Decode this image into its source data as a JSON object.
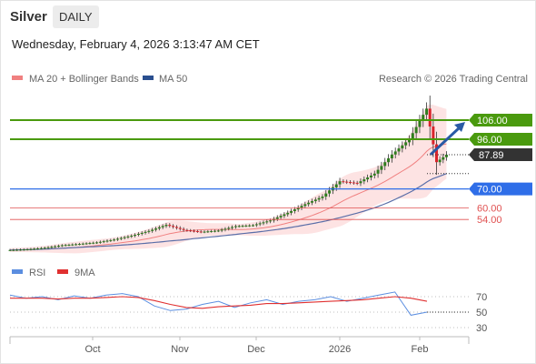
{
  "header": {
    "title": "Silver",
    "period": "DAILY",
    "timestamp": "Wednesday, February 4, 2026 3:13:47 AM CET"
  },
  "colors": {
    "bollinger_fill": "#fde3e3",
    "ma20": "#f08080",
    "ma50": "#5a6ea8",
    "level_green": "#4a9a0e",
    "level_blue": "#2f6ee8",
    "level_red": "#e05050",
    "price_tag": "#333333",
    "candle_up": "#2f7d1e",
    "candle_down": "#d9232b",
    "rsi": "#5b8ee0",
    "rsi_ma": "#e03030",
    "arrow": "#2a5aa5"
  },
  "chart_data": [
    {
      "type": "candlestick",
      "title": "Silver",
      "legend": [
        {
          "name": "MA 20 + Bollinger Bands",
          "color": "#f08080"
        },
        {
          "name": "MA 50",
          "color": "#5a6ea8"
        }
      ],
      "legend_placement": "top-left",
      "credit": "Research © 2026 Trading Central",
      "x_ticks": [
        "Oct",
        "Nov",
        "Dec",
        "2026",
        "Feb"
      ],
      "key_levels": [
        {
          "value": 106.0,
          "label": "106.00",
          "role": "resistance",
          "style": "green-tag"
        },
        {
          "value": 96.0,
          "label": "96.00",
          "role": "resistance",
          "style": "green-tag"
        },
        {
          "value": 87.89,
          "label": "87.89",
          "role": "last-price",
          "style": "dark-tag"
        },
        {
          "value": 70.0,
          "label": "70.00",
          "role": "pivot",
          "style": "blue-tag"
        },
        {
          "value": 60.0,
          "label": "60.00",
          "role": "support",
          "style": "red-text"
        },
        {
          "value": 54.0,
          "label": "54.00",
          "role": "support",
          "style": "red-text"
        }
      ],
      "projection_arrow": {
        "from": 88,
        "to": 106
      },
      "weekly_close": [
        {
          "date": "2025-08-11",
          "value": 38.0
        },
        {
          "date": "2025-08-18",
          "value": 38.4
        },
        {
          "date": "2025-08-25",
          "value": 39.2
        },
        {
          "date": "2025-09-01",
          "value": 40.5
        },
        {
          "date": "2025-09-08",
          "value": 41.2
        },
        {
          "date": "2025-09-15",
          "value": 42.0
        },
        {
          "date": "2025-09-22",
          "value": 43.5
        },
        {
          "date": "2025-09-29",
          "value": 45.5
        },
        {
          "date": "2025-10-06",
          "value": 48.0
        },
        {
          "date": "2025-10-13",
          "value": 51.2
        },
        {
          "date": "2025-10-20",
          "value": 48.5
        },
        {
          "date": "2025-10-27",
          "value": 47.5
        },
        {
          "date": "2025-11-03",
          "value": 48.2
        },
        {
          "date": "2025-11-10",
          "value": 50.5
        },
        {
          "date": "2025-11-17",
          "value": 51.0
        },
        {
          "date": "2025-11-24",
          "value": 53.5
        },
        {
          "date": "2025-12-01",
          "value": 57.5
        },
        {
          "date": "2025-12-08",
          "value": 62.0
        },
        {
          "date": "2025-12-15",
          "value": 66.0
        },
        {
          "date": "2025-12-22",
          "value": 74.0
        },
        {
          "date": "2025-12-29",
          "value": 73.0
        },
        {
          "date": "2026-01-05",
          "value": 78.0
        },
        {
          "date": "2026-01-12",
          "value": 88.0
        },
        {
          "date": "2026-01-19",
          "value": 96.0
        },
        {
          "date": "2026-01-26",
          "value": 112.0
        },
        {
          "date": "2026-01-30",
          "value": 84.0
        },
        {
          "date": "2026-02-03",
          "value": 87.89
        }
      ]
    },
    {
      "type": "line",
      "legend": [
        {
          "name": "RSI",
          "color": "#5b8ee0"
        },
        {
          "name": "9MA",
          "color": "#e03030"
        }
      ],
      "y_ticks": [
        70,
        50,
        30
      ],
      "ylim": [
        20,
        80
      ],
      "series": [
        {
          "name": "RSI",
          "values": [
            72,
            68,
            70,
            66,
            71,
            68,
            72,
            74,
            70,
            58,
            52,
            54,
            60,
            64,
            56,
            62,
            66,
            60,
            64,
            66,
            70,
            64,
            68,
            72,
            76,
            46,
            50
          ]
        },
        {
          "name": "9MA",
          "values": [
            68,
            68,
            68,
            67,
            68,
            68,
            69,
            70,
            69,
            65,
            60,
            56,
            55,
            57,
            58,
            59,
            61,
            61,
            62,
            63,
            64,
            65,
            66,
            68,
            70,
            68,
            64
          ]
        }
      ]
    }
  ]
}
